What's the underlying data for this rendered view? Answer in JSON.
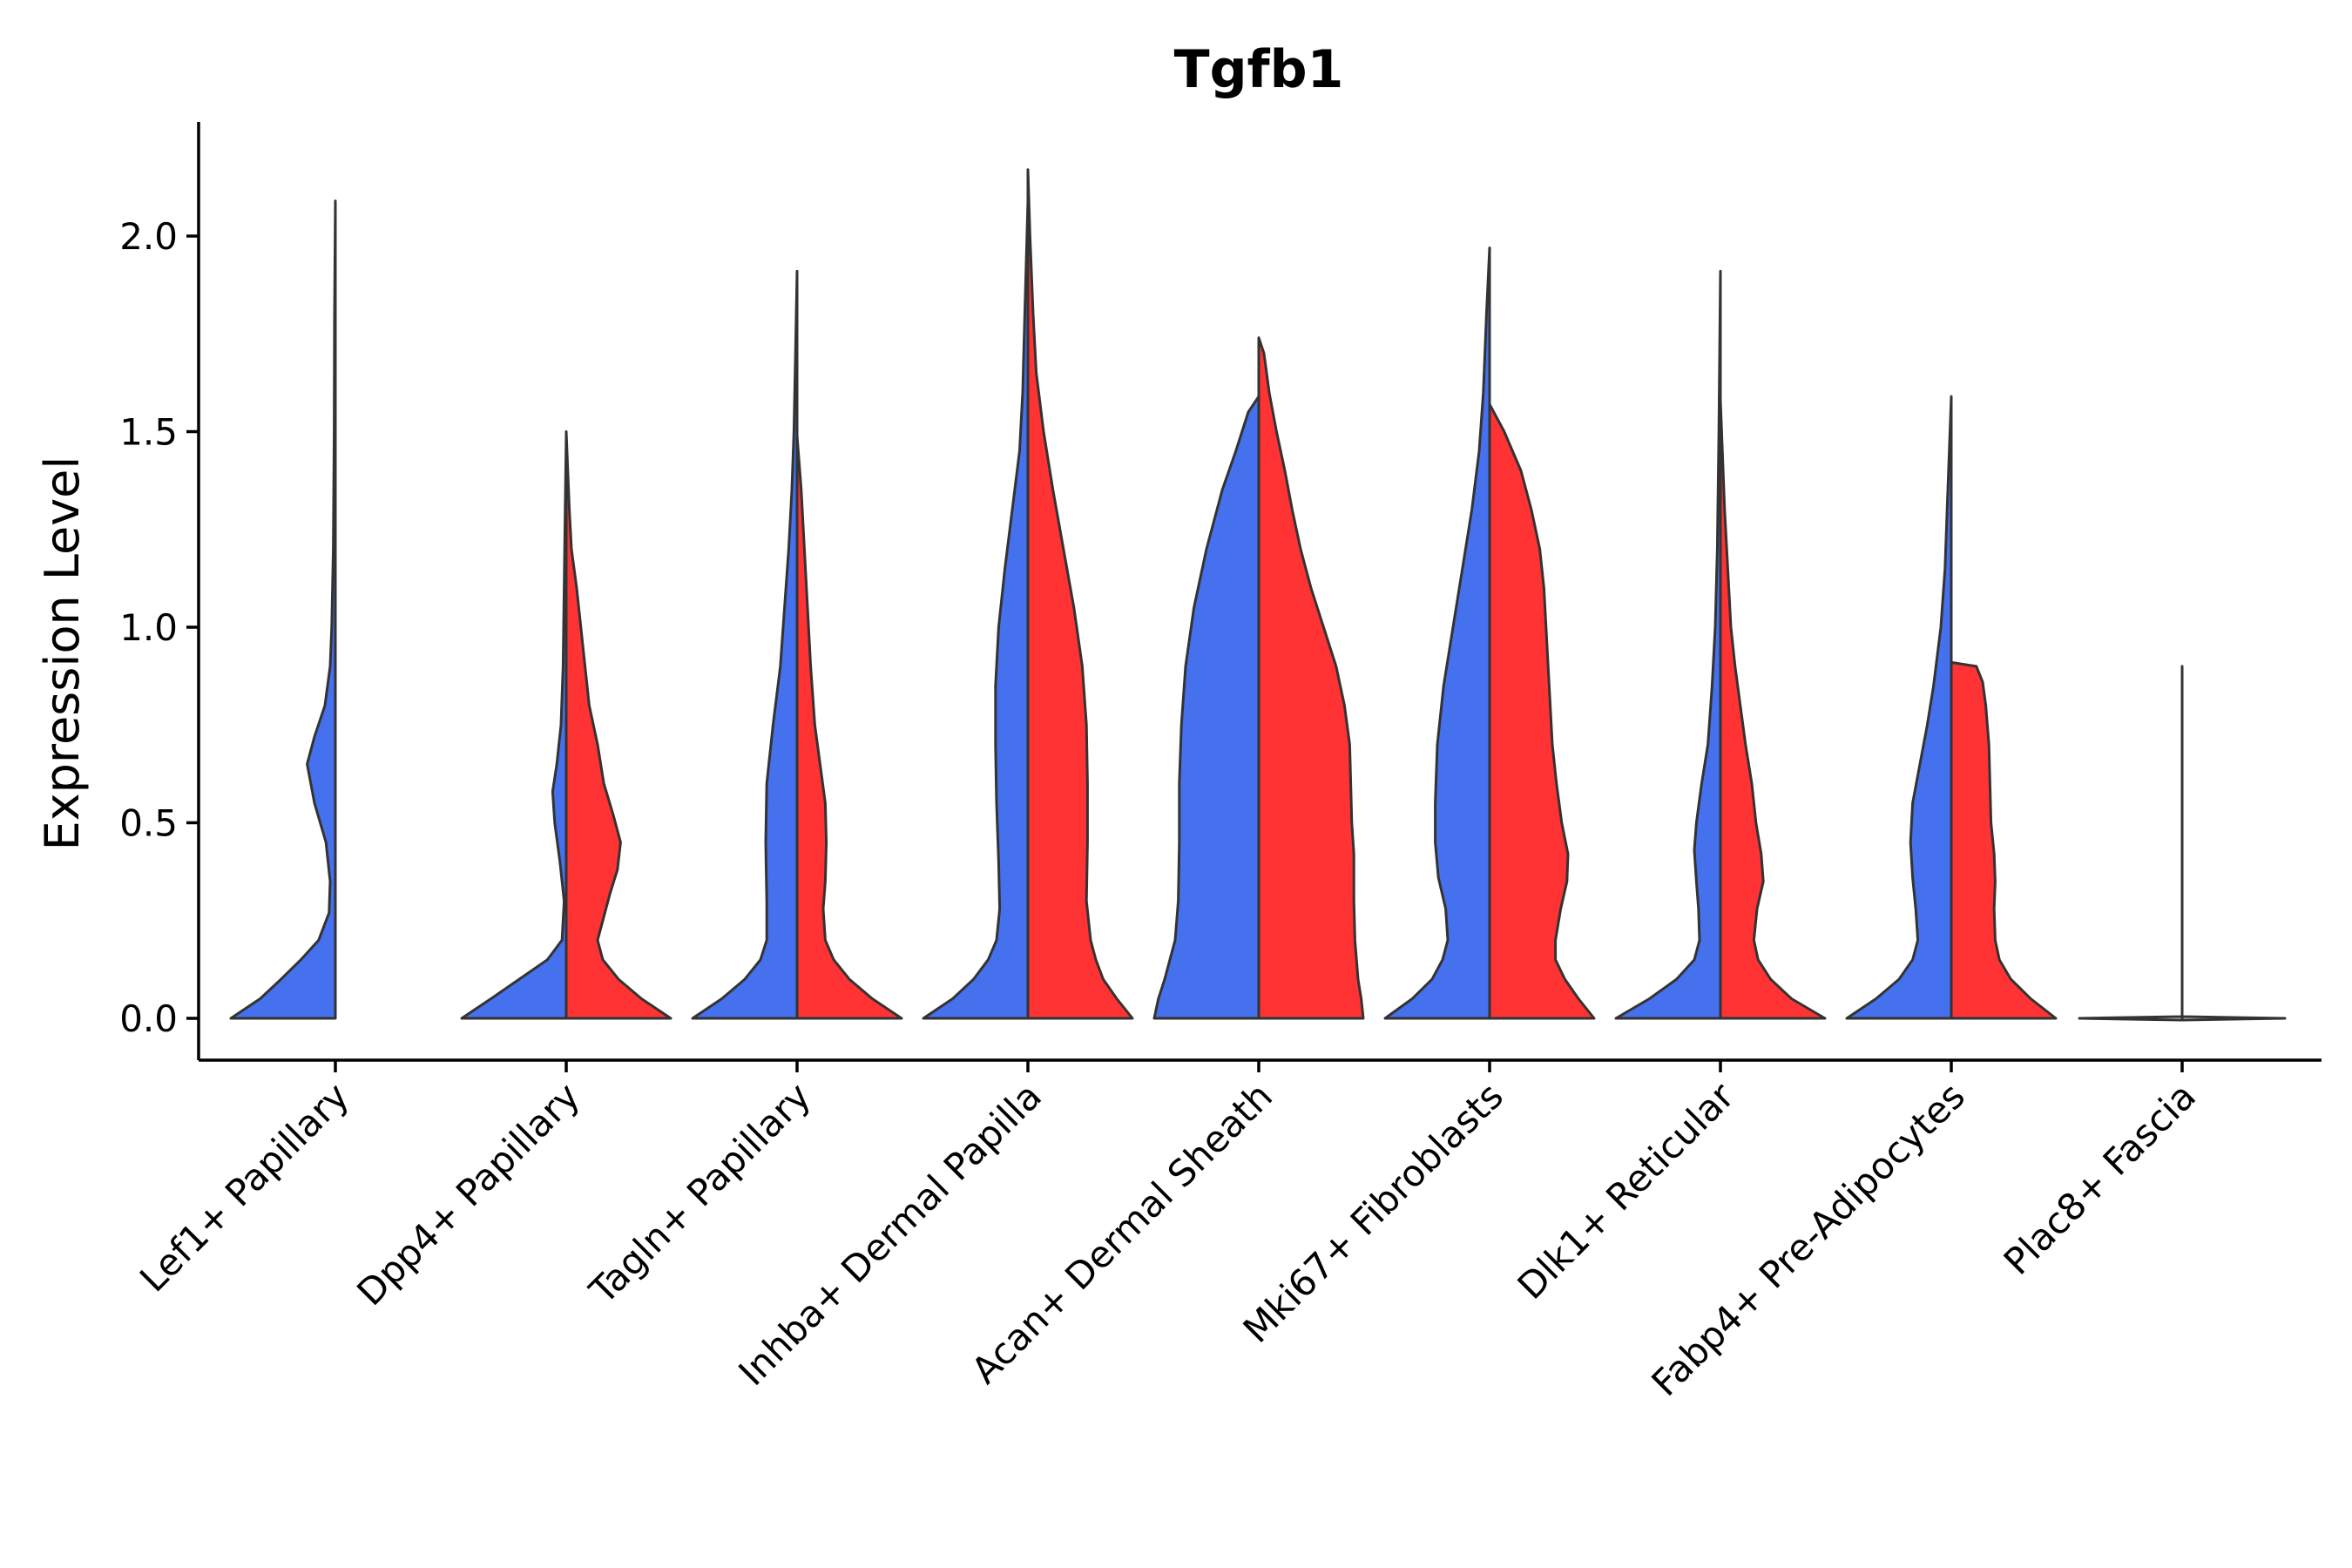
{
  "chart_data": {
    "type": "violin",
    "title": "Tgfb1",
    "xlabel": "",
    "ylabel": "Expression Level",
    "ylim": [
      -0.11,
      2.28
    ],
    "yticks": [
      0.0,
      0.5,
      1.0,
      1.5,
      2.0
    ],
    "ytick_labels": [
      "0.0",
      "0.5",
      "1.0",
      "1.5",
      "2.0"
    ],
    "split_colors": {
      "left": "#4671EE",
      "right": "#FF3333"
    },
    "outline_color": "#333333",
    "categories": [
      "Lef1+ Papillary",
      "Dpp4+ Papillary",
      "Tagln+ Papillary",
      "Inhba+ Dermal Papilla",
      "Acan+ Dermal Sheath",
      "Mki67+ Fibroblasts",
      "Dlk1+ Reticular",
      "Fabp4+ Pre-Adipocytes",
      "Plac8+ Fascia"
    ],
    "violins": [
      {
        "category": "Lef1+ Papillary",
        "side": "left",
        "max": 2.09,
        "profile": [
          [
            0,
            1.0
          ],
          [
            0.05,
            0.72
          ],
          [
            0.1,
            0.52
          ],
          [
            0.15,
            0.33
          ],
          [
            0.2,
            0.16
          ],
          [
            0.27,
            0.06
          ],
          [
            0.35,
            0.05
          ],
          [
            0.45,
            0.09
          ],
          [
            0.55,
            0.2
          ],
          [
            0.65,
            0.27
          ],
          [
            0.72,
            0.2
          ],
          [
            0.8,
            0.1
          ],
          [
            0.9,
            0.05
          ],
          [
            1.0,
            0.035
          ],
          [
            1.2,
            0.02
          ],
          [
            1.5,
            0.012
          ],
          [
            1.8,
            0.008
          ],
          [
            2.09,
            0.0
          ]
        ]
      },
      {
        "category": "Lef1+ Papillary",
        "side": "right",
        "max": 0,
        "profile": []
      },
      {
        "category": "Dpp4+ Papillary",
        "side": "left",
        "max": 1.49,
        "profile": [
          [
            0,
            1.0
          ],
          [
            0.05,
            0.72
          ],
          [
            0.1,
            0.45
          ],
          [
            0.15,
            0.18
          ],
          [
            0.2,
            0.04
          ],
          [
            0.3,
            0.02
          ],
          [
            0.4,
            0.06
          ],
          [
            0.5,
            0.11
          ],
          [
            0.58,
            0.13
          ],
          [
            0.65,
            0.09
          ],
          [
            0.75,
            0.05
          ],
          [
            0.9,
            0.03
          ],
          [
            1.1,
            0.02
          ],
          [
            1.3,
            0.01
          ],
          [
            1.49,
            0.0
          ]
        ]
      },
      {
        "category": "Dpp4+ Papillary",
        "side": "right",
        "max": 1.5,
        "profile": [
          [
            0,
            1.0
          ],
          [
            0.05,
            0.72
          ],
          [
            0.1,
            0.5
          ],
          [
            0.15,
            0.35
          ],
          [
            0.2,
            0.3
          ],
          [
            0.25,
            0.35
          ],
          [
            0.32,
            0.42
          ],
          [
            0.38,
            0.49
          ],
          [
            0.45,
            0.52
          ],
          [
            0.52,
            0.45
          ],
          [
            0.6,
            0.36
          ],
          [
            0.7,
            0.3
          ],
          [
            0.8,
            0.22
          ],
          [
            0.9,
            0.18
          ],
          [
            1.0,
            0.14
          ],
          [
            1.1,
            0.1
          ],
          [
            1.2,
            0.05
          ],
          [
            1.3,
            0.03
          ],
          [
            1.5,
            0.0
          ]
        ]
      },
      {
        "category": "Tagln+ Papillary",
        "side": "left",
        "max": 1.91,
        "profile": [
          [
            0,
            1.0
          ],
          [
            0.05,
            0.72
          ],
          [
            0.1,
            0.5
          ],
          [
            0.15,
            0.35
          ],
          [
            0.2,
            0.29
          ],
          [
            0.3,
            0.29
          ],
          [
            0.45,
            0.3
          ],
          [
            0.6,
            0.29
          ],
          [
            0.75,
            0.23
          ],
          [
            0.9,
            0.16
          ],
          [
            1.05,
            0.12
          ],
          [
            1.2,
            0.08
          ],
          [
            1.35,
            0.05
          ],
          [
            1.5,
            0.03
          ],
          [
            1.7,
            0.015
          ],
          [
            1.91,
            0.0
          ]
        ]
      },
      {
        "category": "Tagln+ Papillary",
        "side": "right",
        "max": 1.49,
        "profile": [
          [
            0,
            1.0
          ],
          [
            0.05,
            0.72
          ],
          [
            0.1,
            0.5
          ],
          [
            0.15,
            0.35
          ],
          [
            0.2,
            0.27
          ],
          [
            0.28,
            0.25
          ],
          [
            0.35,
            0.27
          ],
          [
            0.45,
            0.28
          ],
          [
            0.55,
            0.27
          ],
          [
            0.65,
            0.22
          ],
          [
            0.75,
            0.17
          ],
          [
            0.9,
            0.13
          ],
          [
            1.05,
            0.1
          ],
          [
            1.2,
            0.07
          ],
          [
            1.35,
            0.04
          ],
          [
            1.49,
            0.0
          ]
        ]
      },
      {
        "category": "Inhba+ Dermal Papilla",
        "side": "left",
        "max": 2.09,
        "profile": [
          [
            0,
            1.0
          ],
          [
            0.05,
            0.72
          ],
          [
            0.1,
            0.52
          ],
          [
            0.15,
            0.38
          ],
          [
            0.2,
            0.3
          ],
          [
            0.28,
            0.27
          ],
          [
            0.4,
            0.28
          ],
          [
            0.55,
            0.3
          ],
          [
            0.7,
            0.31
          ],
          [
            0.85,
            0.31
          ],
          [
            1.0,
            0.28
          ],
          [
            1.15,
            0.22
          ],
          [
            1.3,
            0.15
          ],
          [
            1.45,
            0.08
          ],
          [
            1.6,
            0.05
          ],
          [
            1.8,
            0.03
          ],
          [
            2.09,
            0.0
          ]
        ]
      },
      {
        "category": "Inhba+ Dermal Papilla",
        "side": "right",
        "max": 2.17,
        "profile": [
          [
            0,
            1.0
          ],
          [
            0.05,
            0.85
          ],
          [
            0.1,
            0.72
          ],
          [
            0.15,
            0.65
          ],
          [
            0.2,
            0.6
          ],
          [
            0.3,
            0.56
          ],
          [
            0.45,
            0.57
          ],
          [
            0.6,
            0.57
          ],
          [
            0.75,
            0.56
          ],
          [
            0.9,
            0.52
          ],
          [
            1.05,
            0.44
          ],
          [
            1.2,
            0.34
          ],
          [
            1.35,
            0.24
          ],
          [
            1.5,
            0.15
          ],
          [
            1.65,
            0.08
          ],
          [
            1.8,
            0.05
          ],
          [
            2.0,
            0.02
          ],
          [
            2.17,
            0.0
          ]
        ]
      },
      {
        "category": "Acan+ Dermal Sheath",
        "side": "left",
        "max": 1.59,
        "profile": [
          [
            0,
            1.0
          ],
          [
            0.05,
            0.96
          ],
          [
            0.1,
            0.9
          ],
          [
            0.15,
            0.85
          ],
          [
            0.2,
            0.8
          ],
          [
            0.3,
            0.77
          ],
          [
            0.45,
            0.76
          ],
          [
            0.6,
            0.76
          ],
          [
            0.75,
            0.74
          ],
          [
            0.9,
            0.7
          ],
          [
            1.05,
            0.62
          ],
          [
            1.2,
            0.5
          ],
          [
            1.35,
            0.35
          ],
          [
            1.45,
            0.22
          ],
          [
            1.55,
            0.1
          ],
          [
            1.59,
            0.0
          ]
        ]
      },
      {
        "category": "Acan+ Dermal Sheath",
        "side": "right",
        "max": 1.74,
        "profile": [
          [
            0,
            1.0
          ],
          [
            0.05,
            0.98
          ],
          [
            0.1,
            0.95
          ],
          [
            0.2,
            0.92
          ],
          [
            0.3,
            0.91
          ],
          [
            0.42,
            0.91
          ],
          [
            0.5,
            0.89
          ],
          [
            0.6,
            0.88
          ],
          [
            0.7,
            0.87
          ],
          [
            0.8,
            0.82
          ],
          [
            0.9,
            0.74
          ],
          [
            1.0,
            0.62
          ],
          [
            1.1,
            0.5
          ],
          [
            1.2,
            0.4
          ],
          [
            1.3,
            0.32
          ],
          [
            1.4,
            0.25
          ],
          [
            1.5,
            0.17
          ],
          [
            1.6,
            0.1
          ],
          [
            1.7,
            0.05
          ],
          [
            1.74,
            0.0
          ]
        ]
      },
      {
        "category": "Mki67+ Fibroblasts",
        "side": "left",
        "max": 1.97,
        "profile": [
          [
            0,
            1.0
          ],
          [
            0.05,
            0.74
          ],
          [
            0.1,
            0.55
          ],
          [
            0.15,
            0.45
          ],
          [
            0.2,
            0.4
          ],
          [
            0.28,
            0.42
          ],
          [
            0.36,
            0.49
          ],
          [
            0.45,
            0.52
          ],
          [
            0.55,
            0.52
          ],
          [
            0.7,
            0.5
          ],
          [
            0.85,
            0.44
          ],
          [
            1.0,
            0.35
          ],
          [
            1.15,
            0.26
          ],
          [
            1.3,
            0.17
          ],
          [
            1.45,
            0.1
          ],
          [
            1.6,
            0.06
          ],
          [
            1.8,
            0.03
          ],
          [
            1.97,
            0.0
          ]
        ]
      },
      {
        "category": "Mki67+ Fibroblasts",
        "side": "right",
        "max": 1.57,
        "profile": [
          [
            0,
            1.0
          ],
          [
            0.05,
            0.85
          ],
          [
            0.1,
            0.72
          ],
          [
            0.15,
            0.63
          ],
          [
            0.2,
            0.63
          ],
          [
            0.28,
            0.68
          ],
          [
            0.35,
            0.74
          ],
          [
            0.42,
            0.75
          ],
          [
            0.5,
            0.69
          ],
          [
            0.6,
            0.64
          ],
          [
            0.7,
            0.6
          ],
          [
            0.8,
            0.58
          ],
          [
            0.9,
            0.56
          ],
          [
            1.0,
            0.54
          ],
          [
            1.1,
            0.52
          ],
          [
            1.2,
            0.48
          ],
          [
            1.3,
            0.4
          ],
          [
            1.4,
            0.3
          ],
          [
            1.5,
            0.14
          ],
          [
            1.57,
            0.0
          ]
        ]
      },
      {
        "category": "Dlk1+ Reticular",
        "side": "left",
        "max": 1.91,
        "profile": [
          [
            0,
            1.0
          ],
          [
            0.05,
            0.68
          ],
          [
            0.1,
            0.42
          ],
          [
            0.15,
            0.25
          ],
          [
            0.2,
            0.2
          ],
          [
            0.28,
            0.21
          ],
          [
            0.35,
            0.23
          ],
          [
            0.43,
            0.25
          ],
          [
            0.5,
            0.23
          ],
          [
            0.6,
            0.18
          ],
          [
            0.7,
            0.12
          ],
          [
            0.85,
            0.08
          ],
          [
            1.0,
            0.05
          ],
          [
            1.2,
            0.03
          ],
          [
            1.5,
            0.015
          ],
          [
            1.91,
            0.0
          ]
        ]
      },
      {
        "category": "Dlk1+ Reticular",
        "side": "right",
        "max": 1.58,
        "profile": [
          [
            0,
            1.0
          ],
          [
            0.05,
            0.68
          ],
          [
            0.1,
            0.48
          ],
          [
            0.15,
            0.36
          ],
          [
            0.2,
            0.32
          ],
          [
            0.28,
            0.35
          ],
          [
            0.35,
            0.41
          ],
          [
            0.42,
            0.39
          ],
          [
            0.5,
            0.34
          ],
          [
            0.6,
            0.3
          ],
          [
            0.7,
            0.24
          ],
          [
            0.8,
            0.19
          ],
          [
            0.9,
            0.14
          ],
          [
            1.0,
            0.1
          ],
          [
            1.15,
            0.07
          ],
          [
            1.3,
            0.04
          ],
          [
            1.58,
            0.0
          ]
        ]
      },
      {
        "category": "Fabp4+ Pre-Adipocytes",
        "side": "left",
        "max": 1.59,
        "profile": [
          [
            0,
            1.0
          ],
          [
            0.05,
            0.72
          ],
          [
            0.1,
            0.5
          ],
          [
            0.15,
            0.37
          ],
          [
            0.2,
            0.32
          ],
          [
            0.28,
            0.34
          ],
          [
            0.36,
            0.37
          ],
          [
            0.45,
            0.39
          ],
          [
            0.55,
            0.37
          ],
          [
            0.65,
            0.3
          ],
          [
            0.75,
            0.23
          ],
          [
            0.85,
            0.17
          ],
          [
            1.0,
            0.1
          ],
          [
            1.15,
            0.06
          ],
          [
            1.3,
            0.04
          ],
          [
            1.59,
            0.0
          ]
        ]
      },
      {
        "category": "Fabp4+ Pre-Adipocytes",
        "side": "right",
        "max": 0.91,
        "profile": [
          [
            0,
            1.0
          ],
          [
            0.05,
            0.76
          ],
          [
            0.1,
            0.57
          ],
          [
            0.15,
            0.46
          ],
          [
            0.2,
            0.42
          ],
          [
            0.28,
            0.41
          ],
          [
            0.35,
            0.42
          ],
          [
            0.42,
            0.41
          ],
          [
            0.5,
            0.38
          ],
          [
            0.6,
            0.37
          ],
          [
            0.7,
            0.36
          ],
          [
            0.8,
            0.33
          ],
          [
            0.86,
            0.3
          ],
          [
            0.9,
            0.24
          ],
          [
            0.91,
            0.0
          ]
        ]
      },
      {
        "category": "Plac8+ Fascia",
        "side": "left",
        "max": 0.72,
        "profile": [
          [
            0,
            1.0
          ],
          [
            0.003,
            0.0
          ],
          [
            0.72,
            0.0
          ]
        ]
      },
      {
        "category": "Plac8+ Fascia",
        "side": "right",
        "max": 0.9,
        "profile": [
          [
            0,
            1.0
          ],
          [
            0.003,
            0.0
          ],
          [
            0.9,
            0.0
          ]
        ]
      }
    ]
  }
}
